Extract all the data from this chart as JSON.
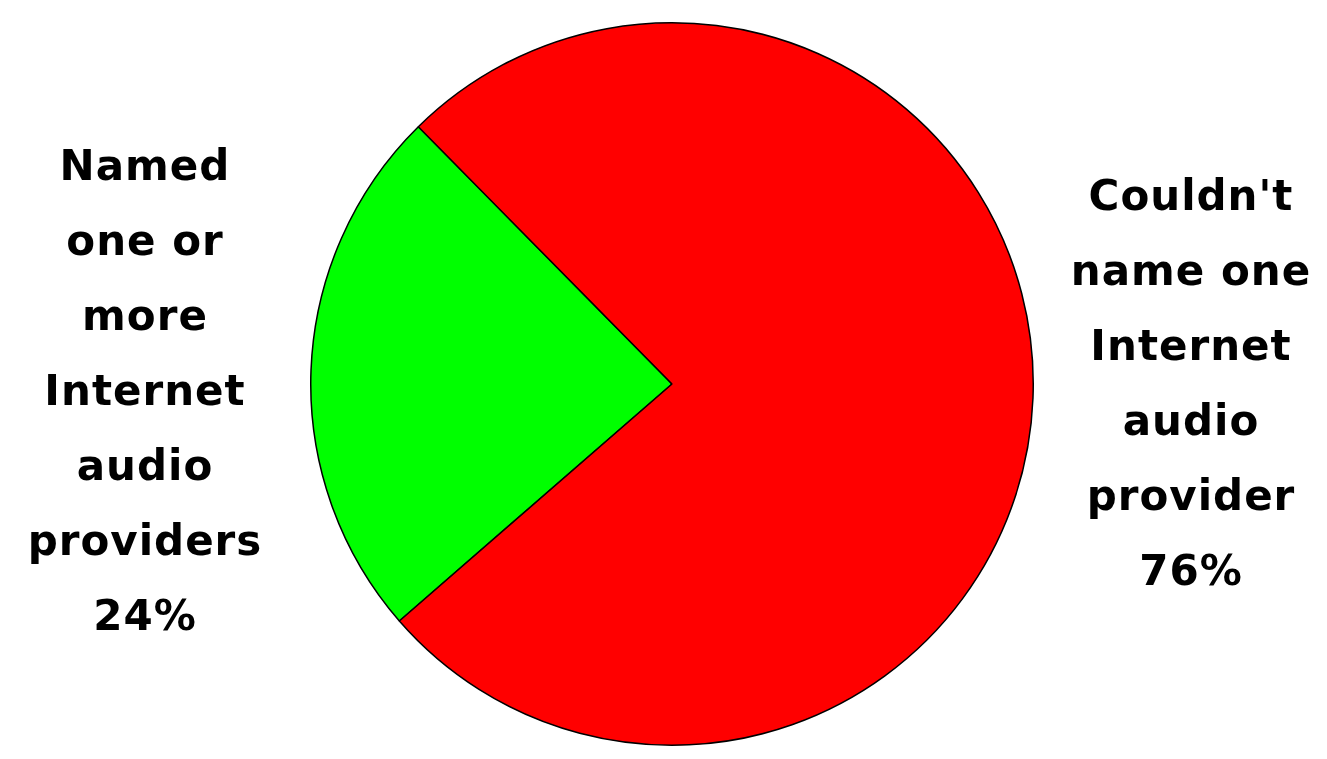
{
  "chart_data": {
    "type": "pie",
    "categories": [
      "Named\none or\nmore\nInternet\naudio\nproviders",
      "Couldn't\nname one\nInternet\naudio\nprovider"
    ],
    "values": [
      24,
      76
    ],
    "colors": [
      "#00ff00",
      "#ff0000"
    ],
    "value_labels": [
      "24%",
      "76%"
    ],
    "legend": false
  }
}
